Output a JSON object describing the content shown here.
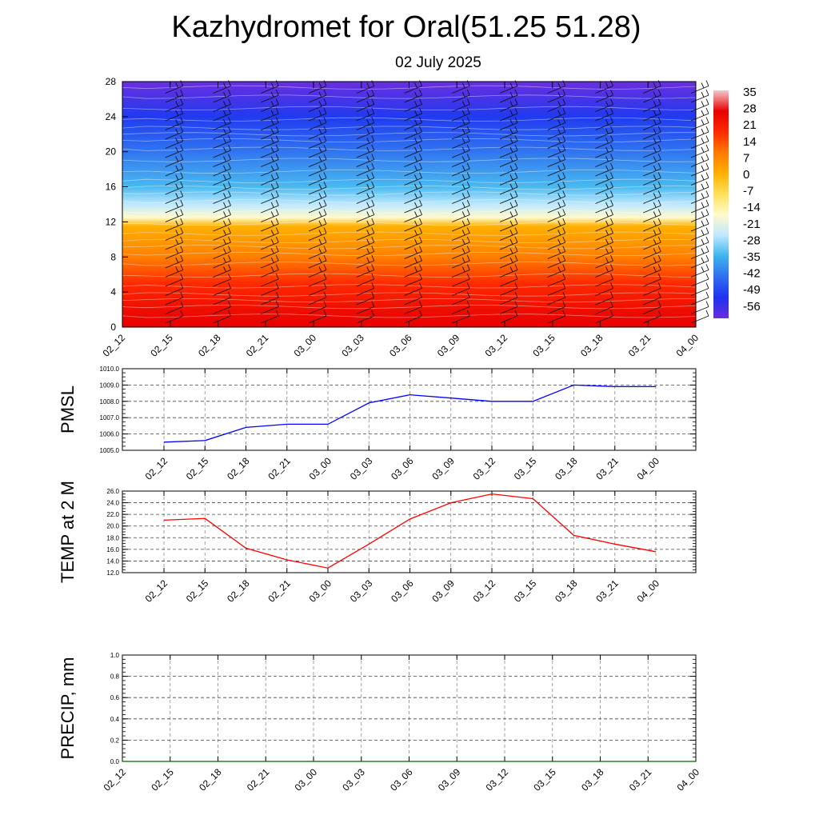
{
  "title": "Kazhydromet for Oral(51.25 51.28)",
  "subtitle": "02 July 2025",
  "time_labels": [
    "02_12",
    "02_15",
    "02_18",
    "02_21",
    "03_00",
    "03_03",
    "03_06",
    "03_09",
    "03_12",
    "03_15",
    "03_18",
    "03_21",
    "04_00"
  ],
  "chart_data": [
    {
      "type": "heatmap",
      "name": "Temperature and wind cross-section",
      "x": [
        "02_12",
        "02_15",
        "02_18",
        "02_21",
        "03_00",
        "03_03",
        "03_06",
        "03_09",
        "03_12",
        "03_15",
        "03_18",
        "03_21",
        "04_00"
      ],
      "y_ticks": [
        0,
        4,
        8,
        12,
        16,
        20,
        24,
        28
      ],
      "ylim": [
        0,
        28
      ],
      "colorbar": {
        "labels": [
          "35",
          "28",
          "21",
          "14",
          "7",
          "0",
          "-7",
          "-14",
          "-21",
          "-28",
          "-35",
          "-42",
          "-49",
          "-56"
        ],
        "stops": [
          "#f4c8cc",
          "#e80000",
          "#ff2a00",
          "#ff7a00",
          "#ffb000",
          "#ffe15a",
          "#fffacc",
          "#bfe9ff",
          "#3cb4ee",
          "#2f6ef0",
          "#1e32f0",
          "#6a2ee0"
        ]
      },
      "temperature_profile": [
        {
          "height": 0,
          "value": 30
        },
        {
          "height": 2,
          "value": 27
        },
        {
          "height": 5,
          "value": 20
        },
        {
          "height": 8,
          "value": 11
        },
        {
          "height": 11.5,
          "value": 2
        },
        {
          "height": 12.5,
          "value": -14
        },
        {
          "height": 14,
          "value": -24
        },
        {
          "height": 16,
          "value": -33
        },
        {
          "height": 20,
          "value": -43
        },
        {
          "height": 24,
          "value": -51
        },
        {
          "height": 28,
          "value": -58
        }
      ],
      "grid": false
    },
    {
      "type": "line",
      "ylabel": "PMSL",
      "ylim": [
        1005.0,
        1010.0
      ],
      "y_ticks": [
        "1005.0",
        "1006.0",
        "1007.0",
        "1008.0",
        "1009.0",
        "1010.0"
      ],
      "categories": [
        "02_12",
        "02_15",
        "02_18",
        "02_21",
        "03_00",
        "03_03",
        "03_06",
        "03_09",
        "03_12",
        "03_15",
        "03_18",
        "03_21",
        "04_00"
      ],
      "series": [
        {
          "values": [
            1005.5,
            1005.6,
            1006.4,
            1006.6,
            1006.6,
            1007.9,
            1008.4,
            1008.2,
            1008.0,
            1008.0,
            1009.0,
            1008.9,
            1008.9
          ],
          "color": "#0000ff"
        }
      ],
      "grid": true
    },
    {
      "type": "line",
      "ylabel": "TEMP at 2 M",
      "ylim": [
        12.0,
        26.0
      ],
      "y_ticks": [
        "12.0",
        "14.0",
        "16.0",
        "18.0",
        "20.0",
        "22.0",
        "24.0",
        "26.0"
      ],
      "categories": [
        "02_12",
        "02_15",
        "02_18",
        "02_21",
        "03_00",
        "03_03",
        "03_06",
        "03_09",
        "03_12",
        "03_15",
        "03_18",
        "03_21",
        "04_00"
      ],
      "series": [
        {
          "values": [
            21.0,
            21.3,
            16.2,
            14.2,
            12.8,
            16.9,
            21.2,
            24.0,
            25.5,
            24.7,
            18.4,
            16.9,
            15.6
          ],
          "color": "#ff0000"
        }
      ],
      "grid": true
    },
    {
      "type": "line",
      "ylabel": "PRECIP, mm",
      "ylim": [
        0.0,
        1.0
      ],
      "y_ticks": [
        "0.0",
        "0.2",
        "0.4",
        "0.6",
        "0.8",
        "1.0"
      ],
      "categories": [
        "02_12",
        "02_15",
        "02_18",
        "02_21",
        "03_00",
        "03_03",
        "03_06",
        "03_09",
        "03_12",
        "03_15",
        "03_18",
        "03_21",
        "04_00"
      ],
      "series": [
        {
          "values": [
            0,
            0,
            0,
            0,
            0,
            0,
            0,
            0,
            0,
            0,
            0,
            0,
            0
          ],
          "color": "#006400"
        }
      ],
      "grid": true
    }
  ]
}
